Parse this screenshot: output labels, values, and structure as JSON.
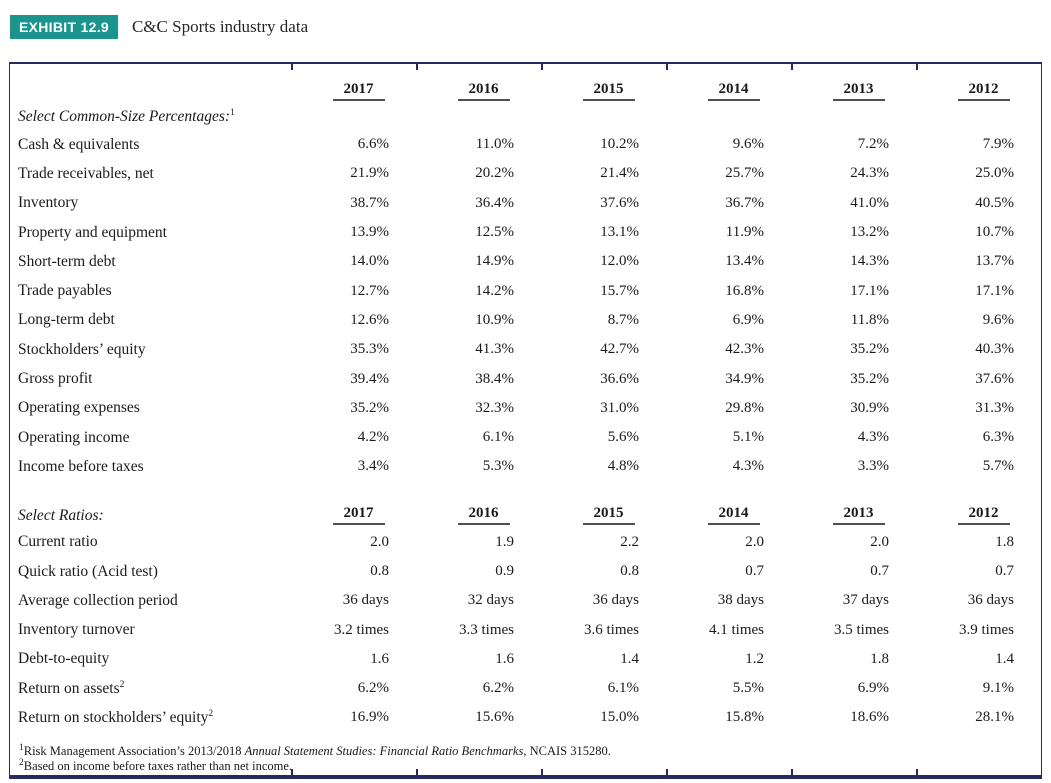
{
  "header": {
    "badge": "EXHIBIT 12.9",
    "title": "C&C Sports industry data"
  },
  "colors": {
    "accent_teal": "#1a948c",
    "border_navy": "#262a5f",
    "year_underline_gray": "#4f4f4f"
  },
  "table": {
    "years": [
      "2017",
      "2016",
      "2015",
      "2014",
      "2013",
      "2012"
    ],
    "sections": [
      {
        "heading": "Select Common-Size Percentages:",
        "heading_sup": "1",
        "years_inline": false,
        "rows": [
          {
            "label": "Cash & equivalents",
            "sup": "",
            "values": [
              "6.6%",
              "11.0%",
              "10.2%",
              "9.6%",
              "7.2%",
              "7.9%"
            ]
          },
          {
            "label": "Trade receivables, net",
            "sup": "",
            "values": [
              "21.9%",
              "20.2%",
              "21.4%",
              "25.7%",
              "24.3%",
              "25.0%"
            ]
          },
          {
            "label": "Inventory",
            "sup": "",
            "values": [
              "38.7%",
              "36.4%",
              "37.6%",
              "36.7%",
              "41.0%",
              "40.5%"
            ]
          },
          {
            "label": "Property and equipment",
            "sup": "",
            "values": [
              "13.9%",
              "12.5%",
              "13.1%",
              "11.9%",
              "13.2%",
              "10.7%"
            ]
          },
          {
            "label": "Short-term debt",
            "sup": "",
            "values": [
              "14.0%",
              "14.9%",
              "12.0%",
              "13.4%",
              "14.3%",
              "13.7%"
            ]
          },
          {
            "label": "Trade payables",
            "sup": "",
            "values": [
              "12.7%",
              "14.2%",
              "15.7%",
              "16.8%",
              "17.1%",
              "17.1%"
            ]
          },
          {
            "label": "Long-term debt",
            "sup": "",
            "values": [
              "12.6%",
              "10.9%",
              "8.7%",
              "6.9%",
              "11.8%",
              "9.6%"
            ]
          },
          {
            "label": "Stockholders’ equity",
            "sup": "",
            "values": [
              "35.3%",
              "41.3%",
              "42.7%",
              "42.3%",
              "35.2%",
              "40.3%"
            ]
          },
          {
            "label": "Gross profit",
            "sup": "",
            "values": [
              "39.4%",
              "38.4%",
              "36.6%",
              "34.9%",
              "35.2%",
              "37.6%"
            ]
          },
          {
            "label": "Operating expenses",
            "sup": "",
            "values": [
              "35.2%",
              "32.3%",
              "31.0%",
              "29.8%",
              "30.9%",
              "31.3%"
            ]
          },
          {
            "label": "Operating income",
            "sup": "",
            "values": [
              "4.2%",
              "6.1%",
              "5.6%",
              "5.1%",
              "4.3%",
              "6.3%"
            ]
          },
          {
            "label": "Income before taxes",
            "sup": "",
            "values": [
              "3.4%",
              "5.3%",
              "4.8%",
              "4.3%",
              "3.3%",
              "5.7%"
            ]
          }
        ]
      },
      {
        "heading": "Select Ratios:",
        "heading_sup": "",
        "years_inline": true,
        "rows": [
          {
            "label": "Current ratio",
            "sup": "",
            "values": [
              "2.0",
              "1.9",
              "2.2",
              "2.0",
              "2.0",
              "1.8"
            ]
          },
          {
            "label": "Quick ratio (Acid test)",
            "sup": "",
            "values": [
              "0.8",
              "0.9",
              "0.8",
              "0.7",
              "0.7",
              "0.7"
            ]
          },
          {
            "label": "Average collection period",
            "sup": "",
            "values": [
              "36 days",
              "32 days",
              "36 days",
              "38 days",
              "37 days",
              "36 days"
            ]
          },
          {
            "label": "Inventory turnover",
            "sup": "",
            "values": [
              "3.2 times",
              "3.3 times",
              "3.6 times",
              "4.1 times",
              "3.5 times",
              "3.9 times"
            ]
          },
          {
            "label": "Debt-to-equity",
            "sup": "",
            "values": [
              "1.6",
              "1.6",
              "1.4",
              "1.2",
              "1.8",
              "1.4"
            ]
          },
          {
            "label": "Return on assets",
            "sup": "2",
            "values": [
              "6.2%",
              "6.2%",
              "6.1%",
              "5.5%",
              "6.9%",
              "9.1%"
            ]
          },
          {
            "label": "Return on stockholders’ equity",
            "sup": "2",
            "values": [
              "16.9%",
              "15.6%",
              "15.0%",
              "15.8%",
              "18.6%",
              "28.1%"
            ]
          }
        ]
      }
    ],
    "footnotes": [
      {
        "sup": "1",
        "before": "Risk Management Association’s 2013/2018 ",
        "italic": "Annual Statement Studies: Financial Ratio Benchmarks",
        "after": ", NCAIS 315280."
      },
      {
        "sup": "2",
        "before": "Based on income before taxes rather than net income.",
        "italic": "",
        "after": ""
      }
    ]
  }
}
